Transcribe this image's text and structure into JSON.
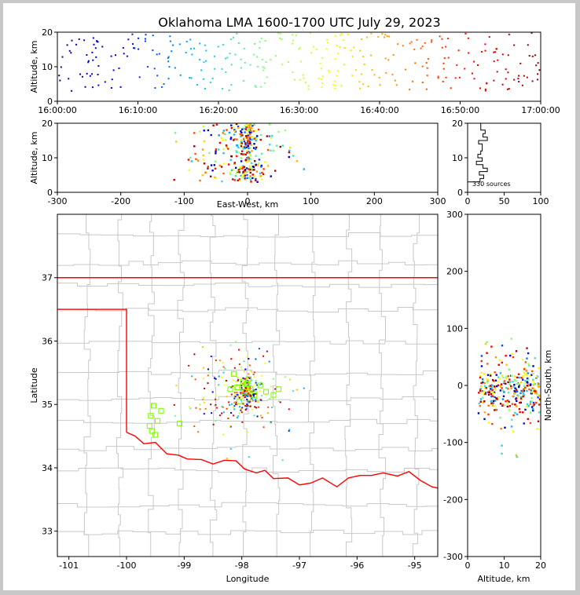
{
  "chart_data": [
    {
      "panel": "time-altitude",
      "type": "scatter",
      "title": "Oklahoma LMA 1600-1700 UTC July 29, 2023",
      "xlabel": "",
      "ylabel": "Altitude, km",
      "xticks": [
        "16:00:00",
        "16:10:00",
        "16:20:00",
        "16:30:00",
        "16:40:00",
        "16:50:00",
        "17:00:00"
      ],
      "yticks": [
        "0",
        "10",
        "20"
      ],
      "xlim_minutes": [
        0,
        60
      ],
      "ylim": [
        0,
        20
      ],
      "color_by": "time",
      "colormap": [
        "#00008b",
        "#0000ff",
        "#00bfff",
        "#7fff7f",
        "#ffff00",
        "#ff8000",
        "#ff0000",
        "#8b0000"
      ],
      "grid": false
    },
    {
      "panel": "east-west-altitude",
      "type": "scatter",
      "xlabel": "East-West, km",
      "ylabel": "Altitude, km",
      "xticks": [
        "-300",
        "-200",
        "-100",
        "0",
        "100",
        "200",
        "300"
      ],
      "yticks": [
        "0",
        "10",
        "20"
      ],
      "xlim": [
        -300,
        300
      ],
      "ylim": [
        0,
        20
      ],
      "grid": false
    },
    {
      "panel": "altitude-histogram",
      "type": "histogram",
      "xticks": [
        "0",
        "50",
        "100"
      ],
      "yticks": [
        "0",
        "10",
        "20"
      ],
      "xlim": [
        0,
        100
      ],
      "ylim": [
        0,
        20
      ],
      "annotation": "330 sources",
      "grid": false
    },
    {
      "panel": "plan-view",
      "type": "scatter",
      "xlabel": "Longitude",
      "ylabel": "Latitude",
      "xticks": [
        "-101",
        "-100",
        "-99",
        "-98",
        "-97",
        "-96",
        "-95"
      ],
      "yticks": [
        "33",
        "34",
        "35",
        "36",
        "37"
      ],
      "xlim": [
        -101.2,
        -94.6
      ],
      "ylim": [
        32.6,
        38.0
      ],
      "state_border_color": "#ff0000",
      "county_line_color": "#c8c8c8",
      "station_marker_color": "#7fff00",
      "stations": [
        {
          "lon": -99.53,
          "lat": 34.98
        },
        {
          "lon": -99.58,
          "lat": 34.82
        },
        {
          "lon": -99.46,
          "lat": 34.74
        },
        {
          "lon": -99.6,
          "lat": 34.66
        },
        {
          "lon": -99.4,
          "lat": 34.9
        },
        {
          "lon": -99.5,
          "lat": 34.52
        },
        {
          "lon": -99.08,
          "lat": 34.7
        },
        {
          "lon": -99.56,
          "lat": 34.58
        },
        {
          "lon": -98.08,
          "lat": 35.27
        },
        {
          "lon": -98.14,
          "lat": 35.48
        },
        {
          "lon": -97.88,
          "lat": 35.4
        },
        {
          "lon": -97.96,
          "lat": 35.2
        },
        {
          "lon": -97.78,
          "lat": 35.15
        },
        {
          "lon": -98.04,
          "lat": 35.05
        },
        {
          "lon": -97.68,
          "lat": 35.3
        },
        {
          "lon": -97.58,
          "lat": 35.2
        },
        {
          "lon": -97.45,
          "lat": 35.15
        },
        {
          "lon": -97.36,
          "lat": 35.24
        },
        {
          "lon": -97.92,
          "lat": 35.32
        },
        {
          "lon": -97.85,
          "lat": 35.25
        },
        {
          "lon": -98.2,
          "lat": 35.24
        },
        {
          "lon": -97.98,
          "lat": 35.35
        }
      ],
      "grid": false
    },
    {
      "panel": "altitude-north-south",
      "type": "scatter",
      "xlabel": "Altitude, km",
      "ylabel": "North-South, km",
      "xticks": [
        "0",
        "10",
        "20"
      ],
      "yticks": [
        "-300",
        "-200",
        "-100",
        "0",
        "100",
        "200",
        "300"
      ],
      "xlim": [
        0,
        20
      ],
      "ylim": [
        -300,
        300
      ],
      "grid": false
    }
  ]
}
